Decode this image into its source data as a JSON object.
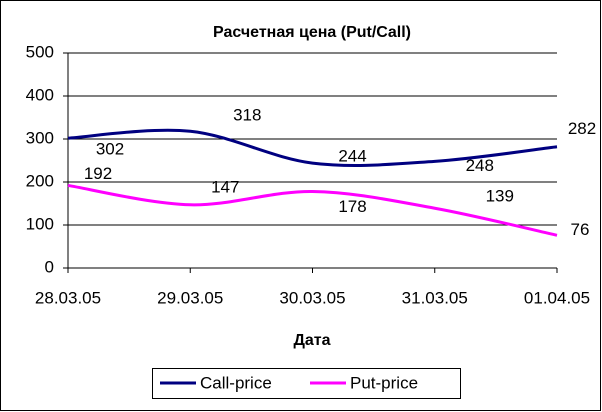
{
  "chart_data": {
    "type": "line",
    "title": "Расчетная цена (Put/Call)",
    "x_label": "Дата",
    "categories": [
      "28.03.05",
      "29.03.05",
      "30.03.05",
      "31.03.05",
      "01.04.05"
    ],
    "series": [
      {
        "name": "Call-price",
        "color": "#000080",
        "values": [
          302,
          318,
          244,
          248,
          282
        ]
      },
      {
        "name": "Put-price",
        "color": "#ff00ff",
        "values": [
          192,
          147,
          178,
          139,
          76
        ]
      }
    ],
    "ylim": [
      0,
      500
    ],
    "yticks": [
      0,
      100,
      200,
      300,
      400,
      500
    ],
    "grid": true,
    "legend": "bottom"
  }
}
